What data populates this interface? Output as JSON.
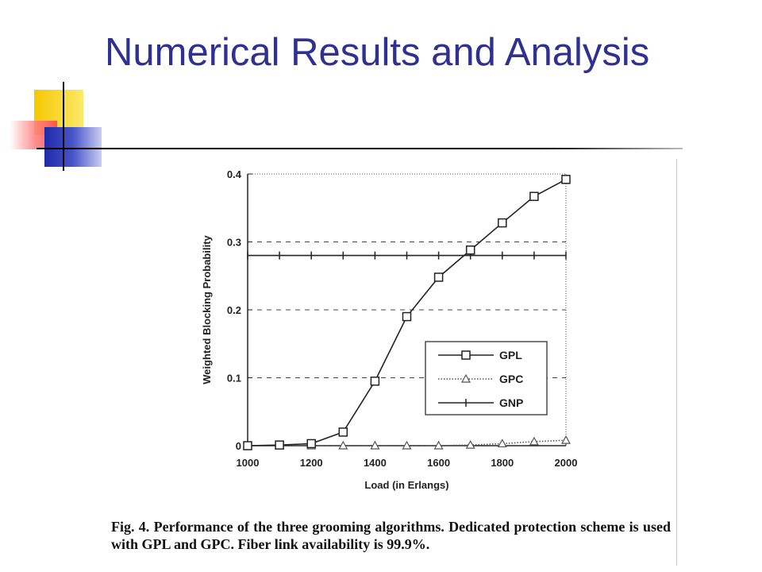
{
  "slide": {
    "title": "Numerical Results and Analysis"
  },
  "figure": {
    "caption": "Fig. 4. Performance of the three grooming algorithms. Dedicated protection scheme is used with GPL and GPC. Fiber link availability is 99.9%."
  },
  "chart_data": {
    "type": "line",
    "title": "",
    "xlabel": "Load (in Erlangs)",
    "ylabel": "Weighted Blocking Probability",
    "xlim": [
      1000,
      2000
    ],
    "ylim": [
      0,
      0.4
    ],
    "x_ticks": [
      "1000",
      "1200",
      "1400",
      "1600",
      "1800",
      "2000"
    ],
    "y_ticks": [
      "0",
      "0.1",
      "0.2",
      "0.3",
      "0.4"
    ],
    "grid": "horizontal dashed",
    "legend_position": "right-center",
    "x": [
      1000,
      1100,
      1200,
      1300,
      1400,
      1500,
      1600,
      1700,
      1800,
      1900,
      2000
    ],
    "series": [
      {
        "name": "GPL",
        "marker": "square",
        "line": "solid",
        "values": [
          0.0,
          0.001,
          0.003,
          0.02,
          0.095,
          0.19,
          0.248,
          0.288,
          0.328,
          0.367,
          0.392
        ]
      },
      {
        "name": "GPC",
        "marker": "triangle",
        "line": "dotted",
        "values": [
          0.0,
          0.0,
          0.0,
          0.0,
          0.0,
          0.0,
          0.0,
          0.001,
          0.003,
          0.006,
          0.008
        ]
      },
      {
        "name": "GNP",
        "marker": "plus",
        "line": "solid",
        "values": [
          0.28,
          0.28,
          0.28,
          0.28,
          0.28,
          0.28,
          0.28,
          0.28,
          0.28,
          0.28,
          0.28
        ]
      }
    ]
  }
}
